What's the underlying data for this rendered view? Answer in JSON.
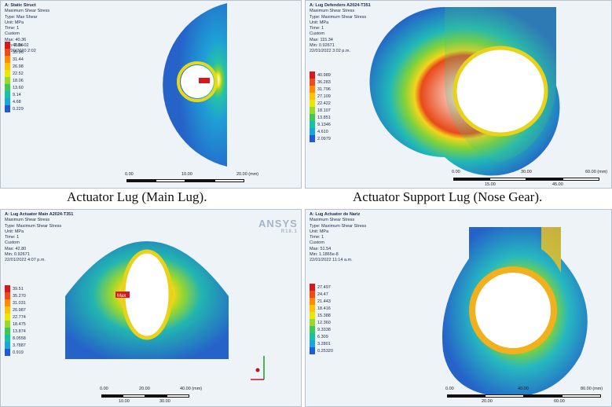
{
  "colors": {
    "legend_scale": [
      "#d7191c",
      "#ee4a1a",
      "#ff8c00",
      "#ffc200",
      "#e8e800",
      "#9ad82c",
      "#3ec85a",
      "#18c0a4",
      "#1aa6d8",
      "#1f5bd6"
    ],
    "model_blue": "#2f7fcf"
  },
  "panels": [
    {
      "caption": "Actuator Lug (Main Lug).",
      "info": [
        "A: Static Struct",
        "Maximum Shear Stress",
        "Type: Max Shear",
        "Unit: MPa",
        "Time: 1",
        "Custom",
        "Max: 40.36",
        "Min: 2.8e-02",
        "10/20/2020 2:02"
      ],
      "legend": [
        "40.36",
        "35.90",
        "31.44",
        "26.98",
        "22.52",
        "18.06",
        "13.60",
        "9.14",
        "4.68",
        "0.229"
      ],
      "scale": [
        "0.00",
        "10.00",
        "20.00 (mm)"
      ],
      "scale_sub": []
    },
    {
      "caption": "Actuator Support Lug (Nose Gear).",
      "info": [
        "A: Lug Defenders A2024-T351",
        "Maximum Shear Stress",
        "Type: Maximum Shear Stress",
        "Unit: MPa",
        "Time: 1",
        "Custom",
        "Max: 115.34",
        "Min: 0.92671",
        "22/01/2022 3:02 p.m."
      ],
      "legend": [
        "40.989",
        "36.283",
        "31.796",
        "27.109",
        "22.422",
        "18.107",
        "13.851",
        "9.1346",
        "4.610",
        "2.0979"
      ],
      "scale": [
        "0.00",
        "30.00",
        "60.00 (mm)"
      ],
      "scale_sub": [
        "15.00",
        "45.00"
      ]
    },
    {
      "caption": "",
      "info": [
        "A: Lug Actuator Main A2024-T351",
        "Maximum Shear Stress",
        "Type: Maximum Shear Stress",
        "Unit: MPa",
        "Time: 1",
        "Custom",
        "Max: 42.80",
        "Min: 0.92671",
        "22/01/2022 4:07 p.m."
      ],
      "legend": [
        "39.51",
        "35.270",
        "31.031",
        "26.987",
        "22.774",
        "18.475",
        "13.874",
        "8.0558",
        "3.7887",
        "0.919"
      ],
      "scale": [
        "0.00",
        "20.00",
        "40.00 (mm)"
      ],
      "scale_sub": [
        "10.00",
        "30.00"
      ],
      "logo": "ANSYS",
      "logo_sub": "R18.1",
      "max_tag": "Max"
    },
    {
      "caption": "",
      "info": [
        "A: Lug Actuator de Nariz",
        "Maximum Shear Stress",
        "Type: Maximum Shear Stress",
        "Unit: MPa",
        "Time: 1",
        "Custom",
        "Max: 51.54",
        "Min: 1.1865e-8",
        "22/01/2022 11:14 a.m."
      ],
      "legend": [
        "27.497",
        "24.47",
        "21.443",
        "18.416",
        "15.388",
        "12.360",
        "9.3338",
        "6.309",
        "3.2801",
        "0.25320"
      ],
      "scale": [
        "0.00",
        "40.00",
        "80.00 (mm)"
      ],
      "scale_sub": [
        "20.00",
        "60.00"
      ]
    }
  ]
}
